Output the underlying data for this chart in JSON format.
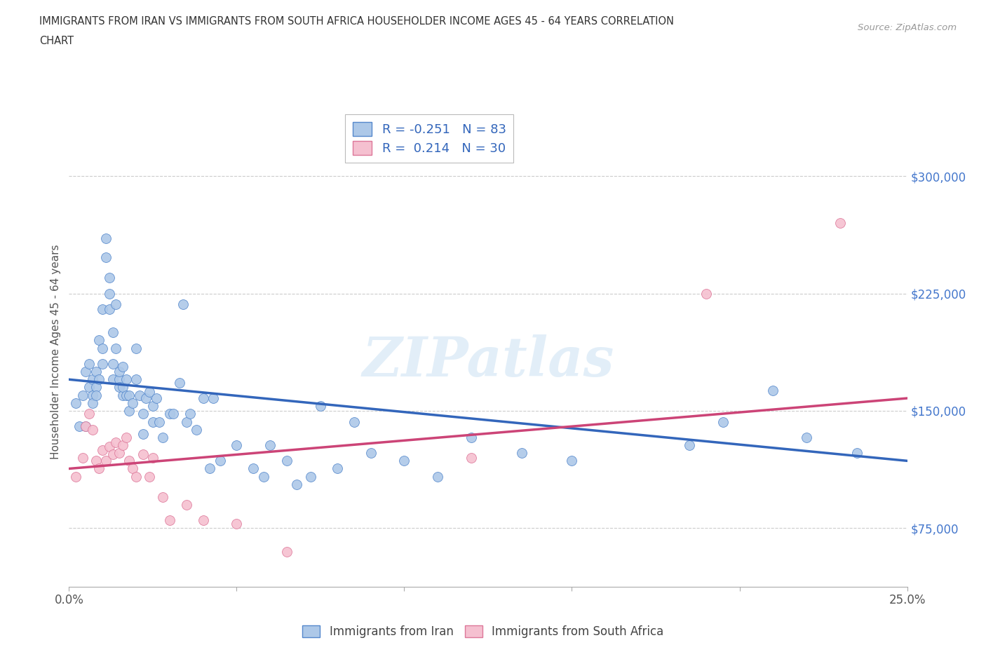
{
  "title_line1": "IMMIGRANTS FROM IRAN VS IMMIGRANTS FROM SOUTH AFRICA HOUSEHOLDER INCOME AGES 45 - 64 YEARS CORRELATION",
  "title_line2": "CHART",
  "source_text": "Source: ZipAtlas.com",
  "ylabel": "Householder Income Ages 45 - 64 years",
  "xlim": [
    0.0,
    0.25
  ],
  "ylim": [
    37500,
    337500
  ],
  "yticks": [
    75000,
    150000,
    225000,
    300000
  ],
  "ytick_labels": [
    "$75,000",
    "$150,000",
    "$225,000",
    "$300,000"
  ],
  "xticks": [
    0.0,
    0.05,
    0.1,
    0.15,
    0.2,
    0.25
  ],
  "xtick_labels": [
    "0.0%",
    "",
    "",
    "",
    "",
    "25.0%"
  ],
  "iran_R": -0.251,
  "iran_N": 83,
  "sa_R": 0.214,
  "sa_N": 30,
  "iran_color": "#adc8e8",
  "iran_edge_color": "#5588cc",
  "iran_line_color": "#3366bb",
  "sa_color": "#f5c0d0",
  "sa_edge_color": "#dd7799",
  "sa_line_color": "#cc4477",
  "watermark": "ZIPatlas",
  "iran_line_x0": 0.0,
  "iran_line_x1": 0.25,
  "iran_line_y0": 170000,
  "iran_line_y1": 118000,
  "sa_line_x0": 0.0,
  "sa_line_x1": 0.25,
  "sa_line_y0": 113000,
  "sa_line_y1": 158000,
  "iran_x": [
    0.002,
    0.003,
    0.004,
    0.005,
    0.005,
    0.006,
    0.006,
    0.007,
    0.007,
    0.007,
    0.008,
    0.008,
    0.008,
    0.009,
    0.009,
    0.01,
    0.01,
    0.01,
    0.011,
    0.011,
    0.012,
    0.012,
    0.012,
    0.013,
    0.013,
    0.013,
    0.014,
    0.014,
    0.015,
    0.015,
    0.015,
    0.016,
    0.016,
    0.016,
    0.017,
    0.017,
    0.018,
    0.018,
    0.019,
    0.02,
    0.02,
    0.021,
    0.022,
    0.022,
    0.023,
    0.024,
    0.025,
    0.025,
    0.026,
    0.027,
    0.028,
    0.03,
    0.031,
    0.033,
    0.034,
    0.035,
    0.036,
    0.038,
    0.04,
    0.042,
    0.043,
    0.045,
    0.05,
    0.055,
    0.058,
    0.06,
    0.065,
    0.068,
    0.072,
    0.075,
    0.08,
    0.085,
    0.09,
    0.1,
    0.11,
    0.12,
    0.135,
    0.15,
    0.185,
    0.195,
    0.21,
    0.22,
    0.235
  ],
  "iran_y": [
    155000,
    140000,
    160000,
    175000,
    140000,
    180000,
    165000,
    170000,
    160000,
    155000,
    175000,
    165000,
    160000,
    195000,
    170000,
    190000,
    215000,
    180000,
    260000,
    248000,
    225000,
    235000,
    215000,
    200000,
    180000,
    170000,
    218000,
    190000,
    170000,
    175000,
    165000,
    178000,
    160000,
    165000,
    170000,
    160000,
    150000,
    160000,
    155000,
    190000,
    170000,
    160000,
    135000,
    148000,
    158000,
    162000,
    143000,
    153000,
    158000,
    143000,
    133000,
    148000,
    148000,
    168000,
    218000,
    143000,
    148000,
    138000,
    158000,
    113000,
    158000,
    118000,
    128000,
    113000,
    108000,
    128000,
    118000,
    103000,
    108000,
    153000,
    113000,
    143000,
    123000,
    118000,
    108000,
    133000,
    123000,
    118000,
    128000,
    143000,
    163000,
    133000,
    123000
  ],
  "sa_x": [
    0.002,
    0.004,
    0.005,
    0.006,
    0.007,
    0.008,
    0.009,
    0.01,
    0.011,
    0.012,
    0.013,
    0.014,
    0.015,
    0.016,
    0.017,
    0.018,
    0.019,
    0.02,
    0.022,
    0.024,
    0.025,
    0.028,
    0.03,
    0.035,
    0.04,
    0.05,
    0.065,
    0.12,
    0.19,
    0.23
  ],
  "sa_y": [
    108000,
    120000,
    140000,
    148000,
    138000,
    118000,
    113000,
    125000,
    118000,
    127000,
    122000,
    130000,
    123000,
    128000,
    133000,
    118000,
    113000,
    108000,
    122000,
    108000,
    120000,
    95000,
    80000,
    90000,
    80000,
    78000,
    60000,
    120000,
    225000,
    270000
  ]
}
